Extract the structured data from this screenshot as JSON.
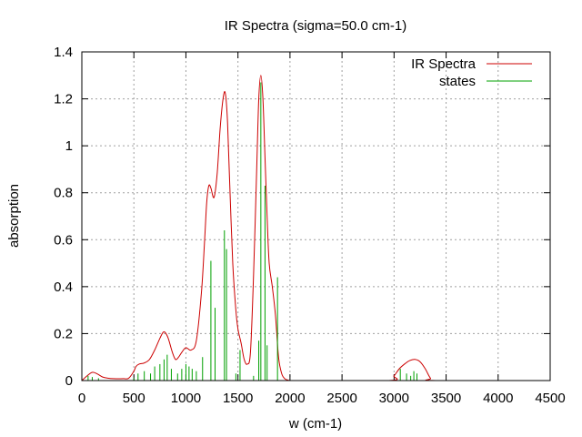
{
  "chart_data": {
    "type": "line",
    "title": "IR Spectra (sigma=50.0 cm-1)",
    "xlabel": "w (cm-1)",
    "ylabel": "absorption",
    "xlim": [
      0,
      4500
    ],
    "ylim": [
      0,
      1.4
    ],
    "xticks": [
      0,
      500,
      1000,
      1500,
      2000,
      2500,
      3000,
      3500,
      4000,
      4500
    ],
    "yticks": [
      0,
      0.2,
      0.4,
      0.6,
      0.8,
      1.0,
      1.2,
      1.4
    ],
    "xtick_labels": [
      "0",
      "500",
      "1000",
      "1500",
      "2000",
      "2500",
      "3000",
      "3500",
      "4000",
      "4500"
    ],
    "ytick_labels": [
      "0",
      "0.2",
      "0.4",
      "0.6",
      "0.8",
      "1",
      "1.2",
      "1.4"
    ],
    "grid": true,
    "legend_position": "top-right",
    "series": [
      {
        "name": "IR Spectra",
        "style": "line",
        "color": "#cc0000",
        "x": [
          0,
          50,
          100,
          150,
          200,
          250,
          300,
          400,
          450,
          500,
          520,
          550,
          600,
          650,
          700,
          750,
          780,
          800,
          830,
          870,
          900,
          930,
          960,
          1000,
          1050,
          1100,
          1150,
          1180,
          1200,
          1220,
          1240,
          1270,
          1300,
          1330,
          1360,
          1380,
          1400,
          1420,
          1450,
          1480,
          1500,
          1530,
          1560,
          1590,
          1620,
          1650,
          1680,
          1700,
          1720,
          1740,
          1760,
          1780,
          1800,
          1830,
          1860,
          1890,
          1920,
          1950,
          1980,
          2000,
          2050,
          2950,
          3000,
          3050,
          3100,
          3150,
          3200,
          3250,
          3300,
          3350,
          3400,
          4500
        ],
        "y": [
          0.0,
          0.02,
          0.035,
          0.028,
          0.015,
          0.01,
          0.008,
          0.008,
          0.01,
          0.04,
          0.06,
          0.07,
          0.075,
          0.09,
          0.13,
          0.18,
          0.205,
          0.205,
          0.18,
          0.12,
          0.09,
          0.1,
          0.12,
          0.14,
          0.13,
          0.17,
          0.38,
          0.6,
          0.76,
          0.83,
          0.82,
          0.78,
          0.88,
          1.08,
          1.21,
          1.22,
          1.1,
          0.85,
          0.5,
          0.3,
          0.22,
          0.16,
          0.09,
          0.07,
          0.12,
          0.45,
          0.9,
          1.2,
          1.3,
          1.2,
          0.95,
          0.7,
          0.5,
          0.4,
          0.28,
          0.1,
          0.03,
          0.008,
          0.002,
          0.0,
          0.0,
          0.0,
          0.02,
          0.05,
          0.07,
          0.085,
          0.09,
          0.08,
          0.05,
          0.01,
          0.0,
          0.0
        ]
      },
      {
        "name": "states",
        "style": "impulse",
        "color": "#00a000",
        "x": [
          60,
          100,
          160,
          500,
          540,
          600,
          660,
          700,
          750,
          790,
          820,
          860,
          920,
          960,
          1000,
          1030,
          1060,
          1100,
          1160,
          1240,
          1280,
          1370,
          1390,
          1480,
          1520,
          1650,
          1700,
          1720,
          1760,
          1780,
          1880,
          3060,
          3120,
          3160,
          3190,
          3220
        ],
        "y": [
          0.02,
          0.015,
          0.01,
          0.01,
          0.03,
          0.04,
          0.03,
          0.06,
          0.07,
          0.09,
          0.11,
          0.05,
          0.03,
          0.05,
          0.07,
          0.06,
          0.05,
          0.04,
          0.1,
          0.51,
          0.31,
          0.64,
          0.56,
          0.03,
          0.13,
          0.02,
          0.17,
          1.27,
          0.83,
          0.15,
          0.44,
          0.05,
          0.03,
          0.02,
          0.04,
          0.03
        ]
      }
    ]
  }
}
